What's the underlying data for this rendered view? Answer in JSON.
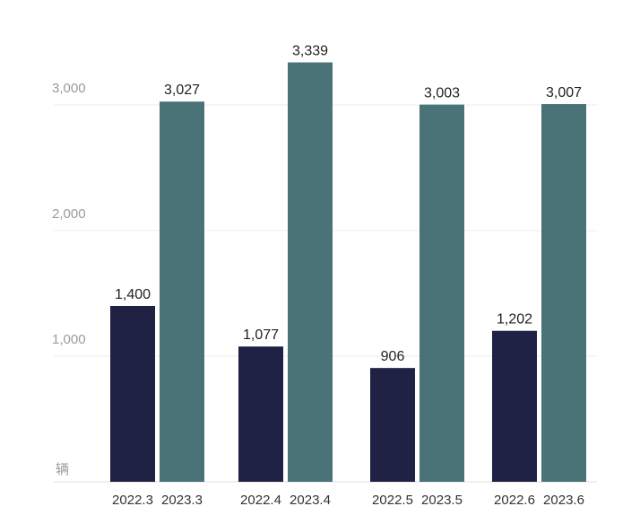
{
  "chart_data": {
    "type": "bar",
    "title": "",
    "unit_label": "辆",
    "ylim": [
      0,
      3500
    ],
    "yticks": [
      {
        "value": 1000,
        "label": "1,000"
      },
      {
        "value": 2000,
        "label": "2,000"
      },
      {
        "value": 3000,
        "label": "3,000"
      }
    ],
    "bars": [
      {
        "category": "2022.3",
        "value": 1400,
        "label": "1,400",
        "series": "2022"
      },
      {
        "category": "2023.3",
        "value": 3027,
        "label": "3,027",
        "series": "2023"
      },
      {
        "category": "2022.4",
        "value": 1077,
        "label": "1,077",
        "series": "2022"
      },
      {
        "category": "2023.4",
        "value": 3339,
        "label": "3,339",
        "series": "2023"
      },
      {
        "category": "2022.5",
        "value": 906,
        "label": "906",
        "series": "2022"
      },
      {
        "category": "2023.5",
        "value": 3003,
        "label": "3,003",
        "series": "2023"
      },
      {
        "category": "2022.6",
        "value": 1202,
        "label": "1,202",
        "series": "2022"
      },
      {
        "category": "2023.6",
        "value": 3007,
        "label": "3,007",
        "series": "2023"
      }
    ],
    "colors": {
      "2022": "#1f2244",
      "2023": "#4a7377"
    }
  }
}
